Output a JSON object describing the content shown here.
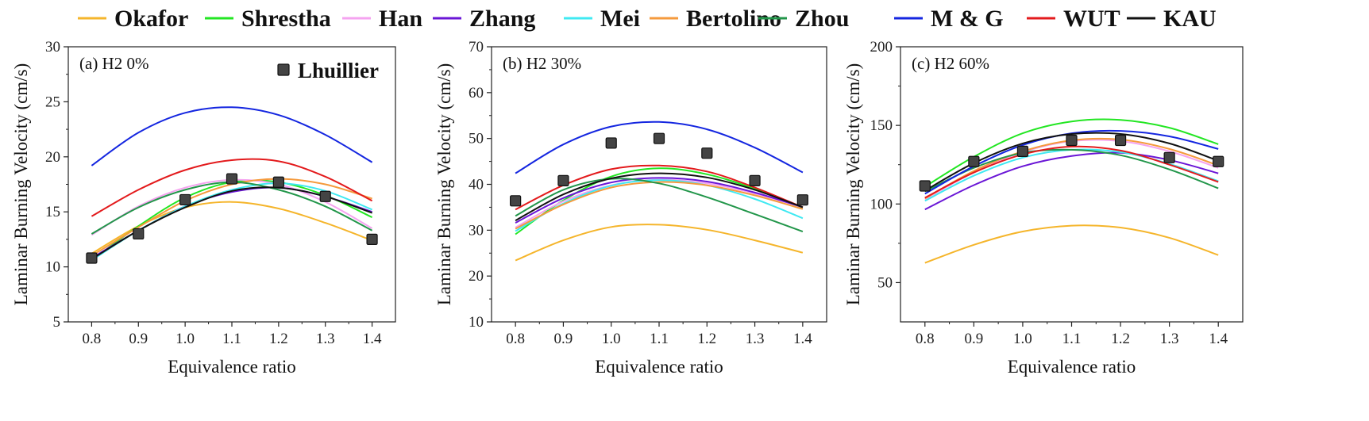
{
  "chart_data": [
    {
      "type": "line",
      "panel_label": "(a) H2 0%",
      "xlabel": "Equivalence ratio",
      "ylabel": "Laminar Burning Velocity (cm/s)",
      "xlim": [
        0.75,
        1.45
      ],
      "ylim": [
        5,
        30
      ],
      "xticks": [
        "0.8",
        "0.9",
        "1.0",
        "1.1",
        "1.2",
        "1.3",
        "1.4"
      ],
      "yticks": [
        "5",
        "10",
        "15",
        "20",
        "25",
        "30"
      ],
      "x": [
        0.8,
        0.9,
        1.0,
        1.1,
        1.2,
        1.3,
        1.4
      ],
      "series": [
        {
          "name": "Okafor",
          "values": [
            11.2,
            13.7,
            15.4,
            15.9,
            15.3,
            14.0,
            12.4
          ]
        },
        {
          "name": "Shrestha",
          "values": [
            10.6,
            13.7,
            16.3,
            17.7,
            17.7,
            16.5,
            14.5
          ]
        },
        {
          "name": "Han",
          "values": [
            12.9,
            15.5,
            17.2,
            17.9,
            17.5,
            15.9,
            13.5
          ]
        },
        {
          "name": "Zhang",
          "values": [
            10.8,
            13.3,
            15.5,
            16.8,
            17.2,
            16.4,
            15.0
          ]
        },
        {
          "name": "Mei",
          "values": [
            10.6,
            13.3,
            15.5,
            17.0,
            17.6,
            16.9,
            15.2
          ]
        },
        {
          "name": "Bertolino",
          "values": [
            11.0,
            13.6,
            16.0,
            17.5,
            18.0,
            17.5,
            16.2
          ]
        },
        {
          "name": "Zhou",
          "values": [
            13.0,
            15.4,
            17.0,
            17.7,
            17.0,
            15.5,
            13.3
          ]
        },
        {
          "name": "M & G",
          "values": [
            19.2,
            22.2,
            24.0,
            24.5,
            23.8,
            22.0,
            19.5
          ]
        },
        {
          "name": "WUT",
          "values": [
            14.6,
            17.0,
            18.8,
            19.7,
            19.6,
            18.2,
            16.0
          ]
        },
        {
          "name": "KAU",
          "values": [
            10.7,
            13.3,
            15.4,
            16.9,
            17.2,
            16.4,
            14.9
          ]
        }
      ],
      "experiment": {
        "name": "Lhuillier",
        "values": [
          10.8,
          13.0,
          16.1,
          18.0,
          17.7,
          16.4,
          12.5
        ]
      }
    },
    {
      "type": "line",
      "panel_label": "(b) H2 30%",
      "xlabel": "Equivalence ratio",
      "ylabel": "Laminar Burning Velocity (cm/s)",
      "xlim": [
        0.75,
        1.45
      ],
      "ylim": [
        10,
        70
      ],
      "xticks": [
        "0.8",
        "0.9",
        "1.0",
        "1.1",
        "1.2",
        "1.3",
        "1.4"
      ],
      "yticks": [
        "10",
        "20",
        "30",
        "40",
        "50",
        "60",
        "70"
      ],
      "x": [
        0.8,
        0.9,
        1.0,
        1.1,
        1.2,
        1.3,
        1.4
      ],
      "series": [
        {
          "name": "Okafor",
          "values": [
            23.4,
            27.8,
            30.7,
            31.2,
            30.1,
            27.8,
            25.1
          ]
        },
        {
          "name": "Shrestha",
          "values": [
            29.1,
            36.5,
            41.7,
            43.5,
            42.2,
            39.0,
            34.9
          ]
        },
        {
          "name": "Han",
          "values": [
            30.6,
            36.3,
            39.8,
            41.0,
            40.2,
            38.0,
            35.0
          ]
        },
        {
          "name": "Zhang",
          "values": [
            31.6,
            37.0,
            40.4,
            41.4,
            40.6,
            38.2,
            35.0
          ]
        },
        {
          "name": "Mei",
          "values": [
            29.8,
            35.8,
            39.7,
            40.9,
            39.8,
            36.8,
            32.6
          ]
        },
        {
          "name": "Bertolino",
          "values": [
            30.3,
            35.6,
            39.3,
            40.5,
            39.8,
            37.6,
            34.6
          ]
        },
        {
          "name": "Zhou",
          "values": [
            33.1,
            38.8,
            41.2,
            40.2,
            37.2,
            33.5,
            29.7
          ]
        },
        {
          "name": "M & G",
          "values": [
            42.4,
            48.7,
            52.6,
            53.6,
            52.0,
            48.0,
            42.6
          ]
        },
        {
          "name": "WUT",
          "values": [
            34.5,
            39.8,
            43.3,
            44.1,
            42.8,
            39.3,
            35.0
          ]
        },
        {
          "name": "KAU",
          "values": [
            32.1,
            37.8,
            41.3,
            42.4,
            41.5,
            38.8,
            35.0
          ]
        }
      ],
      "experiment": {
        "name": "Lhuillier",
        "values": [
          36.4,
          40.8,
          49.0,
          50.0,
          46.8,
          40.8,
          36.6
        ]
      }
    },
    {
      "type": "line",
      "panel_label": "(c) H2 60%",
      "xlabel": "Equivalence ratio",
      "ylabel": "Laminar Burning Velocity (cm/s)",
      "xlim": [
        0.75,
        1.45
      ],
      "ylim": [
        25,
        200
      ],
      "xticks": [
        "0.8",
        "0.9",
        "1.0",
        "1.1",
        "1.2",
        "1.3",
        "1.4"
      ],
      "yticks": [
        "50",
        "100",
        "150",
        "200"
      ],
      "x": [
        0.8,
        0.9,
        1.0,
        1.1,
        1.2,
        1.3,
        1.4
      ],
      "series": [
        {
          "name": "Okafor",
          "values": [
            62.5,
            74.0,
            82.5,
            86.2,
            85.0,
            78.5,
            67.5
          ]
        },
        {
          "name": "Shrestha",
          "values": [
            111.0,
            130.0,
            145.0,
            152.5,
            153.5,
            148.5,
            138.0
          ]
        },
        {
          "name": "Han",
          "values": [
            103.0,
            120.0,
            133.0,
            140.0,
            140.0,
            133.5,
            123.0
          ]
        },
        {
          "name": "Zhang",
          "values": [
            96.5,
            112.0,
            124.0,
            130.5,
            132.5,
            128.0,
            119.5
          ]
        },
        {
          "name": "Mei",
          "values": [
            102.0,
            118.0,
            129.5,
            134.5,
            133.0,
            125.5,
            114.5
          ]
        },
        {
          "name": "Bertolino",
          "values": [
            103.5,
            121.0,
            133.5,
            140.5,
            141.0,
            135.0,
            124.5
          ]
        },
        {
          "name": "Zhou",
          "values": [
            108.0,
            123.0,
            132.5,
            134.5,
            131.0,
            122.0,
            110.0
          ]
        },
        {
          "name": "M & G",
          "values": [
            106.5,
            124.0,
            137.5,
            145.0,
            146.5,
            143.0,
            135.0
          ]
        },
        {
          "name": "WUT",
          "values": [
            104.0,
            120.0,
            131.5,
            136.5,
            134.0,
            125.0,
            114.0
          ]
        },
        {
          "name": "KAU",
          "values": [
            108.5,
            126.0,
            138.5,
            144.5,
            144.5,
            138.5,
            127.5
          ]
        }
      ],
      "experiment": {
        "name": "Lhuillier",
        "values": [
          111.5,
          127.0,
          133.5,
          140.5,
          140.5,
          129.5,
          127.0
        ]
      }
    }
  ],
  "legend": {
    "entries": [
      {
        "name": "Okafor",
        "color": "#f5b52b"
      },
      {
        "name": "Shrestha",
        "color": "#22e622"
      },
      {
        "name": "Han",
        "color": "#f5a3f0"
      },
      {
        "name": "Zhang",
        "color": "#6a16d6"
      },
      {
        "name": "Mei",
        "color": "#3fe9f2"
      },
      {
        "name": "Bertolino",
        "color": "#f59a3c"
      },
      {
        "name": "Zhou",
        "color": "#22964a"
      },
      {
        "name": "M & G",
        "color": "#1426e0"
      },
      {
        "name": "WUT",
        "color": "#e31a1c"
      },
      {
        "name": "KAU",
        "color": "#111111"
      }
    ],
    "placement": "top",
    "experiment_label": "Lhuillier",
    "experiment_marker_color": "#444444"
  }
}
